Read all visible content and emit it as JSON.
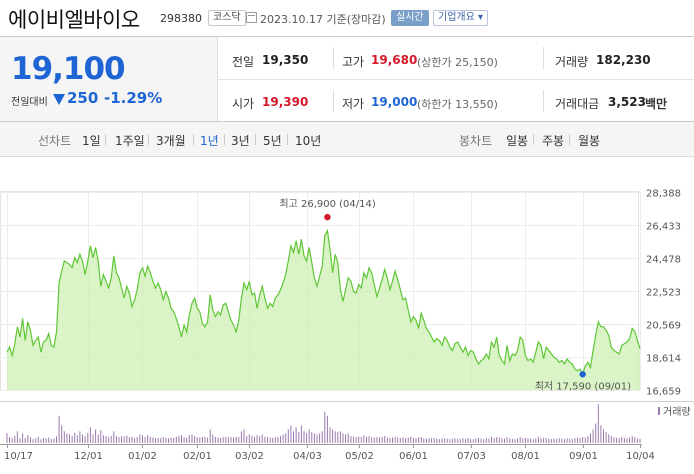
{
  "header": {
    "stock_name": "에이비엘바이오",
    "stock_code": "298380",
    "market": "코스닥",
    "date_text": "2023.10.17 기준(장마감)",
    "realtime_badge": "실시간",
    "company_info": "기업개요 ▾"
  },
  "price": {
    "current": "19,100",
    "change_label": "전일대비",
    "change": "250",
    "change_pct": "-1.29%",
    "direction": "down"
  },
  "stats": {
    "prev_close_label": "전일",
    "prev_close": "19,350",
    "high_label": "고가",
    "high": "19,680",
    "upper_limit": "(상한가 25,150)",
    "volume_label": "거래량",
    "volume": "182,230",
    "open_label": "시가",
    "open": "19,390",
    "low_label": "저가",
    "low": "19,000",
    "lower_limit": "(하한가 13,550)",
    "amount_label": "거래대금",
    "amount": "3,523",
    "amount_unit": "백만"
  },
  "period_bar": {
    "line_chart_label": "선차트",
    "line_periods": [
      "1일",
      "1주일",
      "3개월",
      "1년",
      "3년",
      "5년",
      "10년"
    ],
    "selected": "1년",
    "candle_label": "봉차트",
    "candle_periods": [
      "일봉",
      "주봉",
      "월봉"
    ]
  },
  "colors": {
    "up": "#d3182a",
    "down": "#1e64d4",
    "line": "#5fc636",
    "area": "#cdf0b5"
  },
  "chart_data": {
    "type": "area",
    "y_ticks": [
      "28,388",
      "26,433",
      "24,478",
      "22,523",
      "20,569",
      "18,614",
      "16,659"
    ],
    "y_tick_values": [
      28388,
      26433,
      24478,
      22523,
      20569,
      18614,
      16659
    ],
    "ylim": [
      16659,
      28388
    ],
    "x_tick_labels": [
      "10/17",
      "12/01",
      "01/02",
      "02/01",
      "03/02",
      "04/03",
      "05/02",
      "06/01",
      "07/03",
      "08/01",
      "09/01",
      "10/04"
    ],
    "x_tick_index": [
      0,
      31,
      52,
      73,
      93,
      115,
      135,
      156,
      178,
      199,
      221,
      243
    ],
    "high_label": "최고 26,900 (04/14)",
    "high_value": 26900,
    "high_index": 123,
    "low_label": "최저 17,590 (09/01)",
    "low_value": 17590,
    "low_index": 221,
    "volume_label": "거래량",
    "price_series": [
      18900,
      19200,
      18700,
      19400,
      20400,
      19800,
      20900,
      19600,
      20700,
      20200,
      19300,
      19600,
      19800,
      18900,
      19500,
      19600,
      20000,
      19300,
      19200,
      20100,
      23000,
      23700,
      24300,
      24200,
      24100,
      23900,
      24500,
      24200,
      24700,
      24300,
      23500,
      24300,
      25200,
      24500,
      25100,
      24300,
      22800,
      23500,
      23100,
      22700,
      23300,
      24600,
      23600,
      23300,
      22700,
      22100,
      22800,
      22400,
      21600,
      22000,
      22600,
      23600,
      23900,
      23400,
      24000,
      23600,
      23100,
      22700,
      23000,
      22600,
      22000,
      22500,
      22100,
      21500,
      21300,
      20900,
      20400,
      19800,
      20500,
      20100,
      21100,
      21800,
      22100,
      21500,
      21300,
      20600,
      20400,
      20700,
      22300,
      21400,
      21000,
      21300,
      21100,
      21700,
      21800,
      21300,
      20800,
      20500,
      20100,
      20800,
      22100,
      23000,
      22600,
      23100,
      22300,
      22400,
      21500,
      22300,
      22800,
      22100,
      21500,
      21800,
      21600,
      22100,
      22300,
      22600,
      23000,
      23500,
      24300,
      25200,
      24800,
      25500,
      24700,
      25600,
      24600,
      24300,
      25100,
      24200,
      23300,
      22800,
      23400,
      24000,
      25800,
      26100,
      25000,
      23600,
      24700,
      24200,
      22600,
      21900,
      22600,
      23300,
      23100,
      22500,
      22400,
      22900,
      22700,
      23600,
      23300,
      23900,
      23600,
      22900,
      22200,
      22700,
      23200,
      23800,
      23300,
      22600,
      23100,
      23700,
      23200,
      22600,
      22000,
      22100,
      21400,
      20700,
      21000,
      20800,
      20300,
      21200,
      20800,
      20300,
      20100,
      19800,
      19500,
      19700,
      19600,
      19300,
      19800,
      19600,
      19200,
      19000,
      19400,
      19500,
      19200,
      18900,
      19200,
      18700,
      19000,
      18900,
      18500,
      18200,
      18400,
      18500,
      18800,
      18500,
      19500,
      19200,
      19800,
      18700,
      18400,
      18200,
      19300,
      18400,
      18800,
      18700,
      19000,
      19800,
      19600,
      18700,
      18400,
      18500,
      18300,
      18900,
      19500,
      19300,
      18500,
      19200,
      19000,
      18800,
      18600,
      18500,
      18300,
      18400,
      18200,
      18500,
      18300,
      18200,
      17900,
      17800,
      17900,
      17600,
      18100,
      18300,
      18000,
      19000,
      19900,
      20700,
      20400,
      20400,
      20200,
      19900,
      19200,
      19000,
      18900,
      18800,
      19300,
      19400,
      19500,
      19700,
      20300,
      20100,
      19600,
      19100
    ],
    "volume_series": [
      0.25,
      0.15,
      0.12,
      0.18,
      0.3,
      0.12,
      0.25,
      0.13,
      0.2,
      0.15,
      0.1,
      0.12,
      0.16,
      0.1,
      0.13,
      0.12,
      0.14,
      0.1,
      0.11,
      0.17,
      0.7,
      0.45,
      0.3,
      0.25,
      0.22,
      0.18,
      0.26,
      0.2,
      0.3,
      0.22,
      0.18,
      0.26,
      0.4,
      0.22,
      0.35,
      0.22,
      0.33,
      0.2,
      0.18,
      0.15,
      0.18,
      0.3,
      0.18,
      0.15,
      0.18,
      0.17,
      0.19,
      0.15,
      0.16,
      0.12,
      0.15,
      0.22,
      0.2,
      0.15,
      0.2,
      0.16,
      0.14,
      0.12,
      0.13,
      0.12,
      0.15,
      0.13,
      0.12,
      0.14,
      0.13,
      0.16,
      0.18,
      0.2,
      0.15,
      0.14,
      0.2,
      0.22,
      0.18,
      0.15,
      0.14,
      0.16,
      0.15,
      0.14,
      0.35,
      0.22,
      0.16,
      0.14,
      0.13,
      0.15,
      0.16,
      0.14,
      0.15,
      0.14,
      0.16,
      0.15,
      0.3,
      0.35,
      0.18,
      0.22,
      0.18,
      0.16,
      0.2,
      0.18,
      0.22,
      0.16,
      0.15,
      0.14,
      0.13,
      0.15,
      0.16,
      0.18,
      0.22,
      0.25,
      0.35,
      0.45,
      0.3,
      0.4,
      0.28,
      0.45,
      0.3,
      0.25,
      0.35,
      0.28,
      0.25,
      0.22,
      0.25,
      0.3,
      0.8,
      0.7,
      0.4,
      0.35,
      0.3,
      0.28,
      0.3,
      0.25,
      0.22,
      0.25,
      0.18,
      0.16,
      0.15,
      0.17,
      0.15,
      0.2,
      0.16,
      0.18,
      0.15,
      0.14,
      0.15,
      0.14,
      0.16,
      0.18,
      0.14,
      0.13,
      0.14,
      0.16,
      0.14,
      0.13,
      0.14,
      0.12,
      0.14,
      0.16,
      0.13,
      0.12,
      0.14,
      0.15,
      0.12,
      0.11,
      0.12,
      0.12,
      0.13,
      0.11,
      0.1,
      0.11,
      0.12,
      0.11,
      0.1,
      0.11,
      0.12,
      0.11,
      0.1,
      0.12,
      0.11,
      0.13,
      0.1,
      0.1,
      0.12,
      0.13,
      0.11,
      0.1,
      0.12,
      0.11,
      0.16,
      0.12,
      0.15,
      0.14,
      0.12,
      0.11,
      0.14,
      0.12,
      0.11,
      0.1,
      0.12,
      0.15,
      0.12,
      0.13,
      0.12,
      0.11,
      0.1,
      0.12,
      0.16,
      0.12,
      0.13,
      0.12,
      0.11,
      0.1,
      0.11,
      0.1,
      0.12,
      0.11,
      0.1,
      0.12,
      0.11,
      0.1,
      0.12,
      0.13,
      0.12,
      0.15,
      0.14,
      0.18,
      0.25,
      0.35,
      0.5,
      1.0,
      0.45,
      0.35,
      0.28,
      0.22,
      0.18,
      0.15,
      0.13,
      0.12,
      0.15,
      0.13,
      0.12,
      0.14,
      0.18,
      0.15,
      0.12,
      0.11
    ]
  }
}
